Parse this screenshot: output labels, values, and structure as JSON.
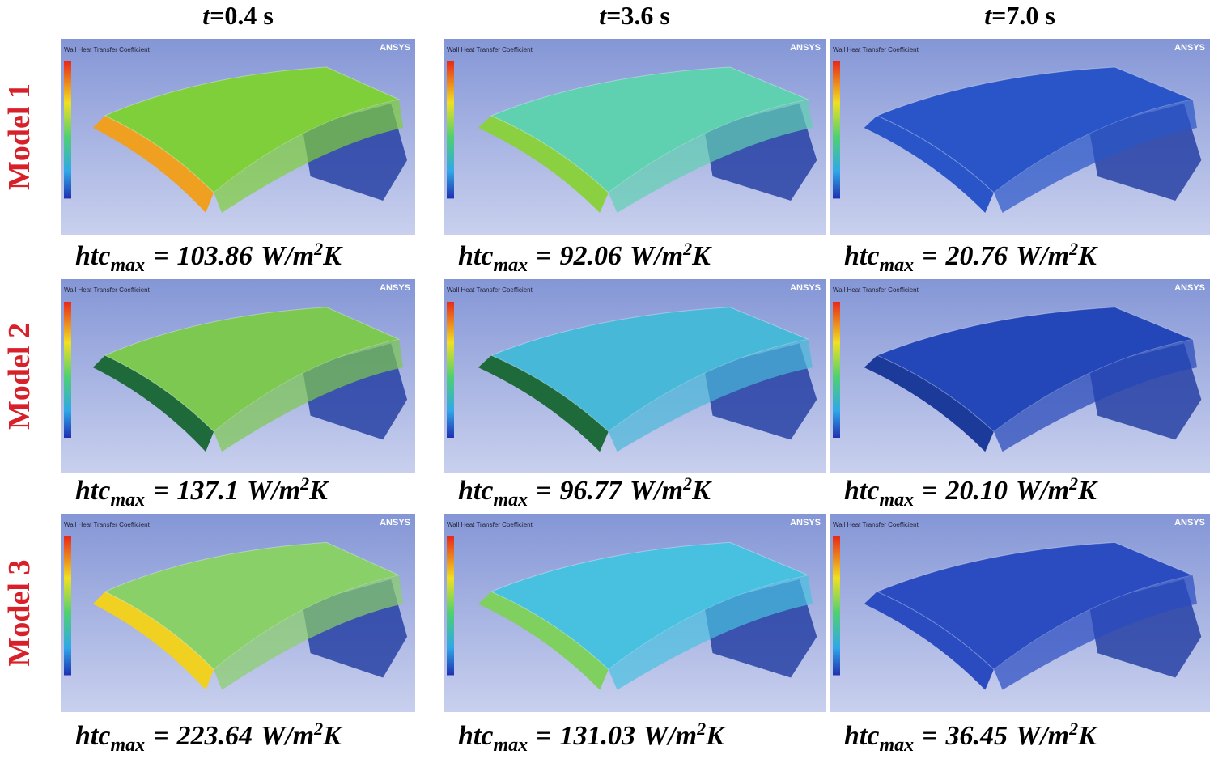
{
  "figure": {
    "columns": [
      {
        "variable": "t",
        "rest": "=0.4 s"
      },
      {
        "variable": "t",
        "rest": "=3.6 s"
      },
      {
        "variable": "t",
        "rest": "=7.0 s"
      }
    ],
    "rows": [
      {
        "label": "Model  1",
        "cells": [
          {
            "value": "103.86",
            "color": "#7fcf3a",
            "edge": "#f0a020"
          },
          {
            "value": "92.06",
            "color": "#5fd0b0",
            "edge": "#8ad040"
          },
          {
            "value": "20.76",
            "color": "#2a55c8",
            "edge": "#2a55c8"
          }
        ]
      },
      {
        "label": "Model  2",
        "cells": [
          {
            "value": "137.1",
            "color": "#7cc850",
            "edge": "#1f6a3a"
          },
          {
            "value": "96.77",
            "color": "#48b8d8",
            "edge": "#1f6a3a"
          },
          {
            "value": "20.10",
            "color": "#2346b8",
            "edge": "#1c3a9a"
          }
        ]
      },
      {
        "label": "Model  3",
        "cells": [
          {
            "value": "223.64",
            "color": "#8ad068",
            "edge": "#f0d020"
          },
          {
            "value": "131.03",
            "color": "#48c0e0",
            "edge": "#80d060"
          },
          {
            "value": "36.45",
            "color": "#2a4cc0",
            "edge": "#2a4cc0"
          }
        ]
      }
    ],
    "symbol": {
      "main": "htc",
      "sub": "max",
      "equals": "="
    },
    "unit": {
      "base": "W/m",
      "sup": "2",
      "end": "K"
    },
    "render": {
      "brand": "ANSYS",
      "legend_title": "Wall Heat Transfer Coefficient"
    }
  }
}
